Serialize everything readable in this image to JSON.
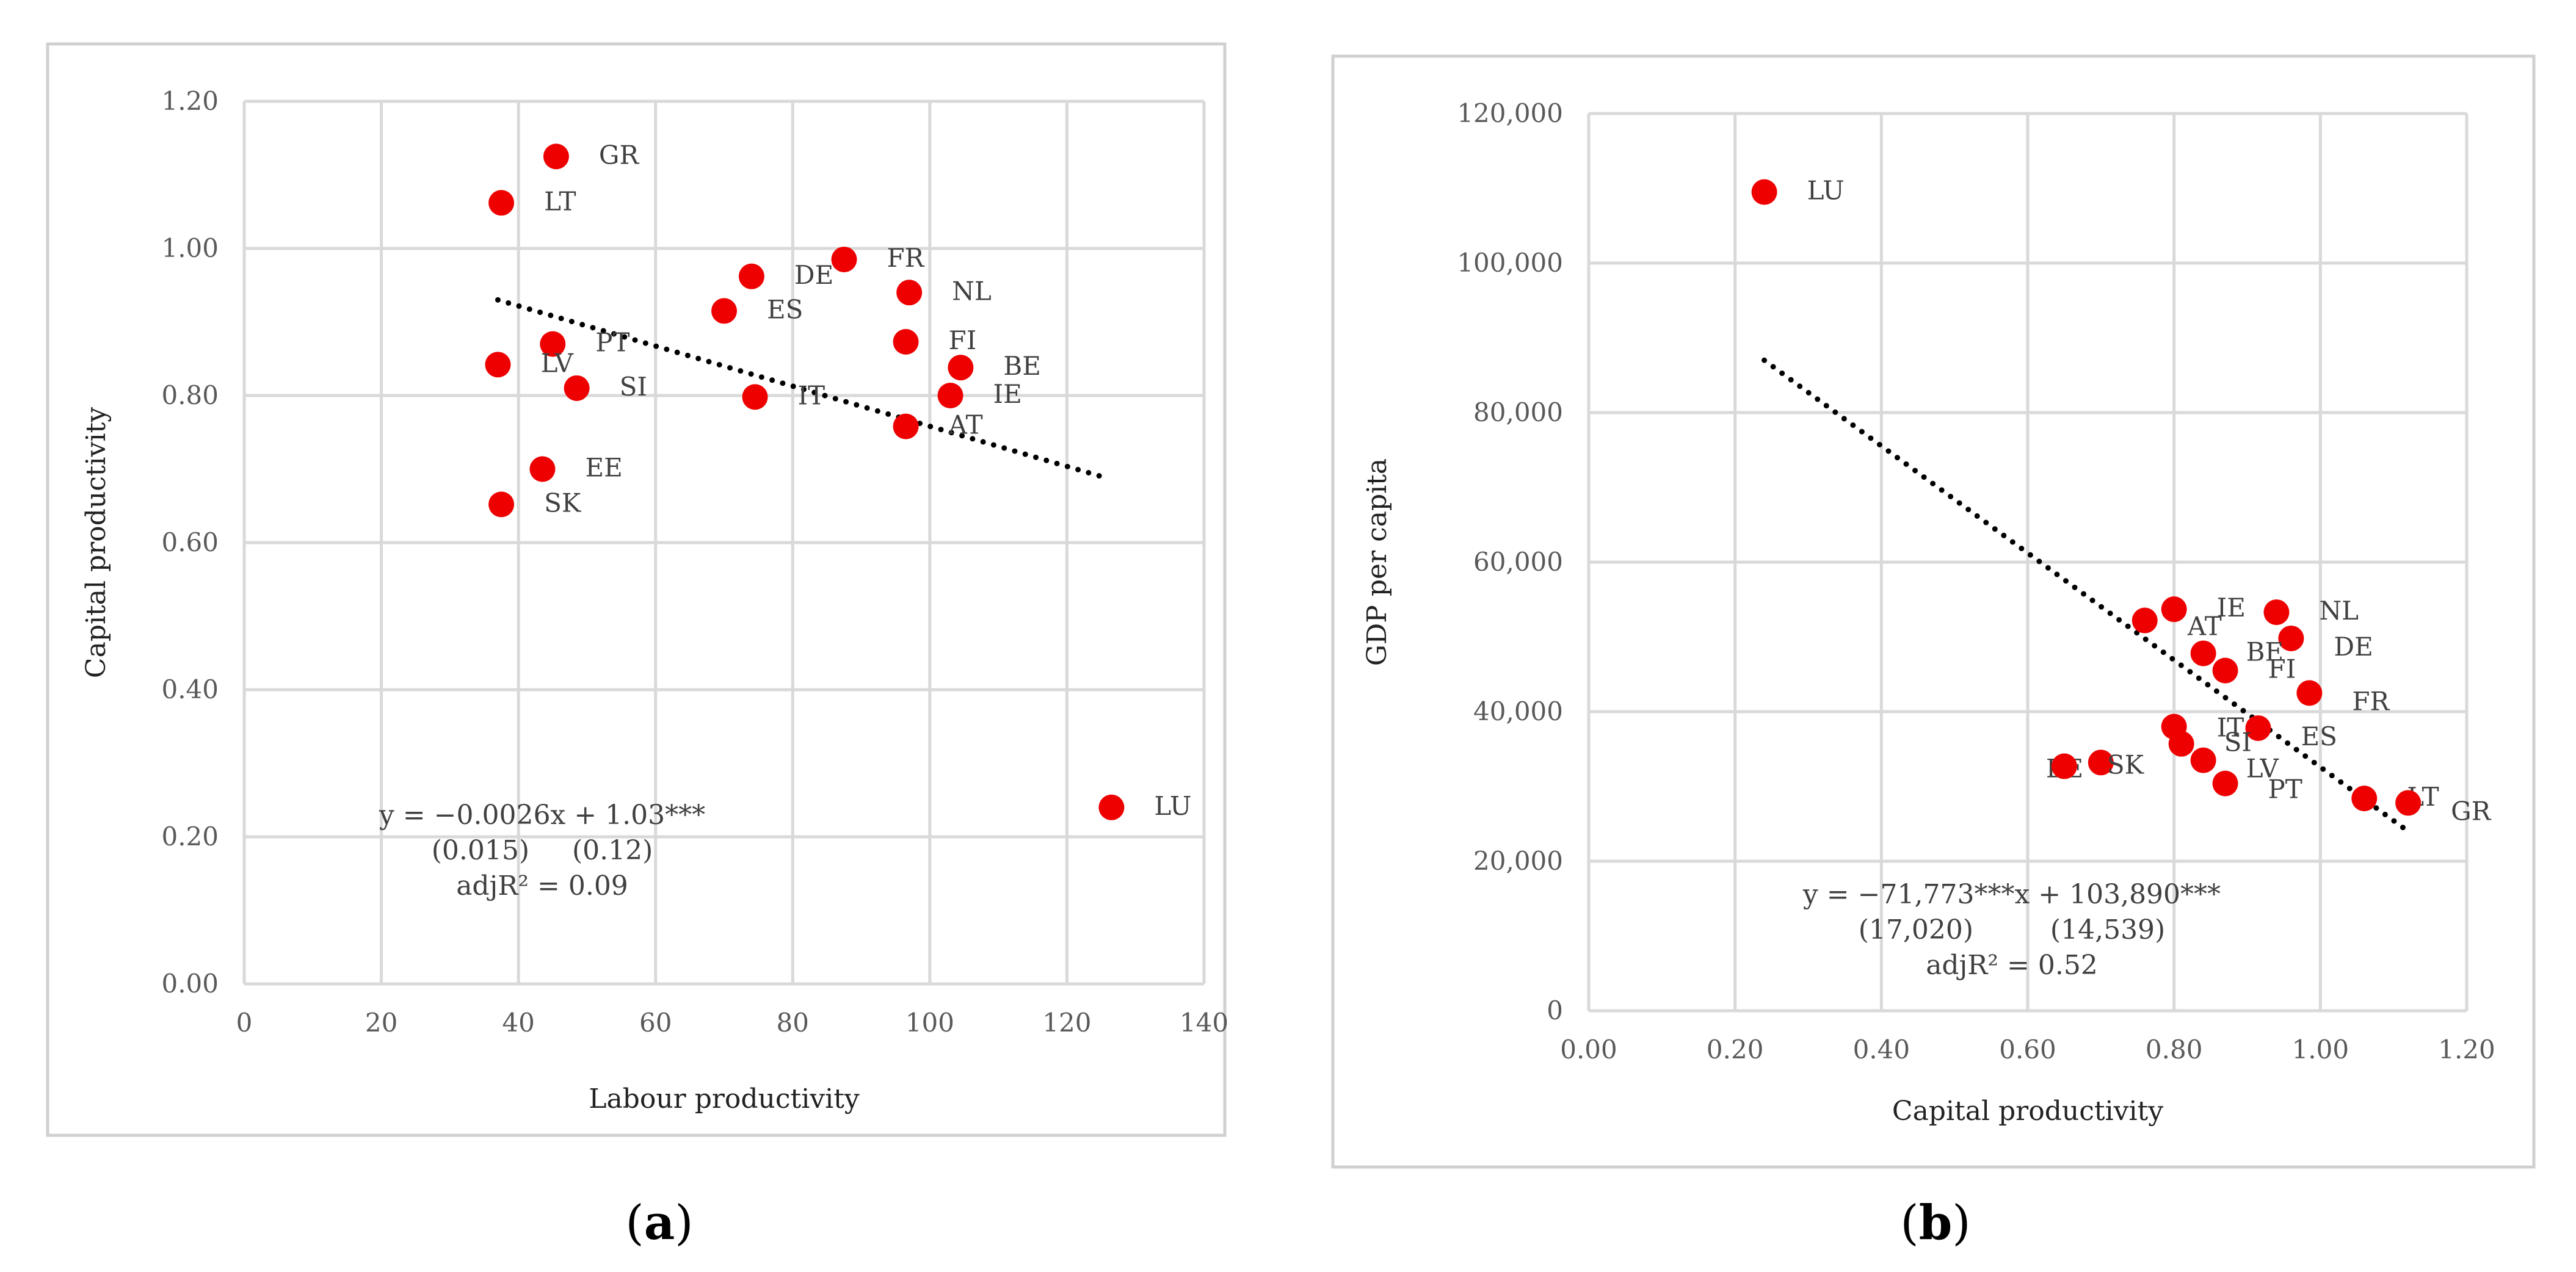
{
  "chart_data": [
    {
      "type": "scatter",
      "panel_label": "a",
      "xlabel": "Labour productivity",
      "ylabel": "Capital productivity",
      "xlim": [
        0,
        140
      ],
      "ylim": [
        0,
        1.2
      ],
      "xticks": [
        "0",
        "20",
        "40",
        "60",
        "80",
        "100",
        "120",
        "140"
      ],
      "yticks": [
        "0.00",
        "0.20",
        "0.40",
        "0.60",
        "0.80",
        "1.00",
        "1.20"
      ],
      "points": [
        {
          "label": "GR",
          "x": 45.5,
          "y": 1.125
        },
        {
          "label": "LT",
          "x": 37.5,
          "y": 1.062
        },
        {
          "label": "FR",
          "x": 87.5,
          "y": 0.985
        },
        {
          "label": "DE",
          "x": 74,
          "y": 0.962
        },
        {
          "label": "NL",
          "x": 97,
          "y": 0.94
        },
        {
          "label": "ES",
          "x": 70,
          "y": 0.915
        },
        {
          "label": "FI",
          "x": 96.5,
          "y": 0.873
        },
        {
          "label": "PT",
          "x": 45,
          "y": 0.87
        },
        {
          "label": "LV",
          "x": 37,
          "y": 0.842
        },
        {
          "label": "BE",
          "x": 104.5,
          "y": 0.838
        },
        {
          "label": "SI",
          "x": 48.5,
          "y": 0.81
        },
        {
          "label": "IT",
          "x": 74.5,
          "y": 0.798
        },
        {
          "label": "IE",
          "x": 103,
          "y": 0.8
        },
        {
          "label": "AT",
          "x": 96.5,
          "y": 0.758
        },
        {
          "label": "EE",
          "x": 43.5,
          "y": 0.7
        },
        {
          "label": "SK",
          "x": 37.5,
          "y": 0.652
        },
        {
          "label": "LU",
          "x": 126.5,
          "y": 0.24
        }
      ],
      "trendline": {
        "x": [
          37,
          125
        ],
        "y": [
          0.93,
          0.69
        ]
      },
      "equation": [
        "y = −0.0026x + 1.03***",
        "(0.015)     (0.12)",
        "adjR² = 0.09"
      ]
    },
    {
      "type": "scatter",
      "panel_label": "b",
      "xlabel": "Capital productivity",
      "ylabel": "GDP per capita",
      "xlim": [
        0,
        1.2
      ],
      "ylim": [
        0,
        120000
      ],
      "xticks": [
        "0.00",
        "0.20",
        "0.40",
        "0.60",
        "0.80",
        "1.00",
        "1.20"
      ],
      "yticks": [
        "0",
        "20,000",
        "40,000",
        "60,000",
        "80,000",
        "100,000",
        "120,000"
      ],
      "points": [
        {
          "label": "LU",
          "x": 0.24,
          "y": 109500
        },
        {
          "label": "IE",
          "x": 0.8,
          "y": 53700
        },
        {
          "label": "NL",
          "x": 0.94,
          "y": 53300
        },
        {
          "label": "AT",
          "x": 0.76,
          "y": 52200
        },
        {
          "label": "DE",
          "x": 0.96,
          "y": 49800
        },
        {
          "label": "BE",
          "x": 0.84,
          "y": 47800
        },
        {
          "label": "FI",
          "x": 0.87,
          "y": 45500
        },
        {
          "label": "FR",
          "x": 0.985,
          "y": 42500
        },
        {
          "label": "IT",
          "x": 0.8,
          "y": 38000
        },
        {
          "label": "ES",
          "x": 0.915,
          "y": 37800
        },
        {
          "label": "SI",
          "x": 0.81,
          "y": 35700
        },
        {
          "label": "LV",
          "x": 0.84,
          "y": 33500
        },
        {
          "label": "EE",
          "x": 0.7,
          "y": 33200
        },
        {
          "label": "SK",
          "x": 0.65,
          "y": 32700
        },
        {
          "label": "PT",
          "x": 0.87,
          "y": 30400
        },
        {
          "label": "LT",
          "x": 1.06,
          "y": 28400
        },
        {
          "label": "GR",
          "x": 1.12,
          "y": 27800
        }
      ],
      "trendline": {
        "x": [
          0.24,
          1.12
        ],
        "y": [
          87000,
          24000
        ]
      },
      "equation": [
        "y = −71,773***x + 103,890***",
        "(17,020)         (14,539)",
        "adjR² = 0.52"
      ]
    }
  ]
}
